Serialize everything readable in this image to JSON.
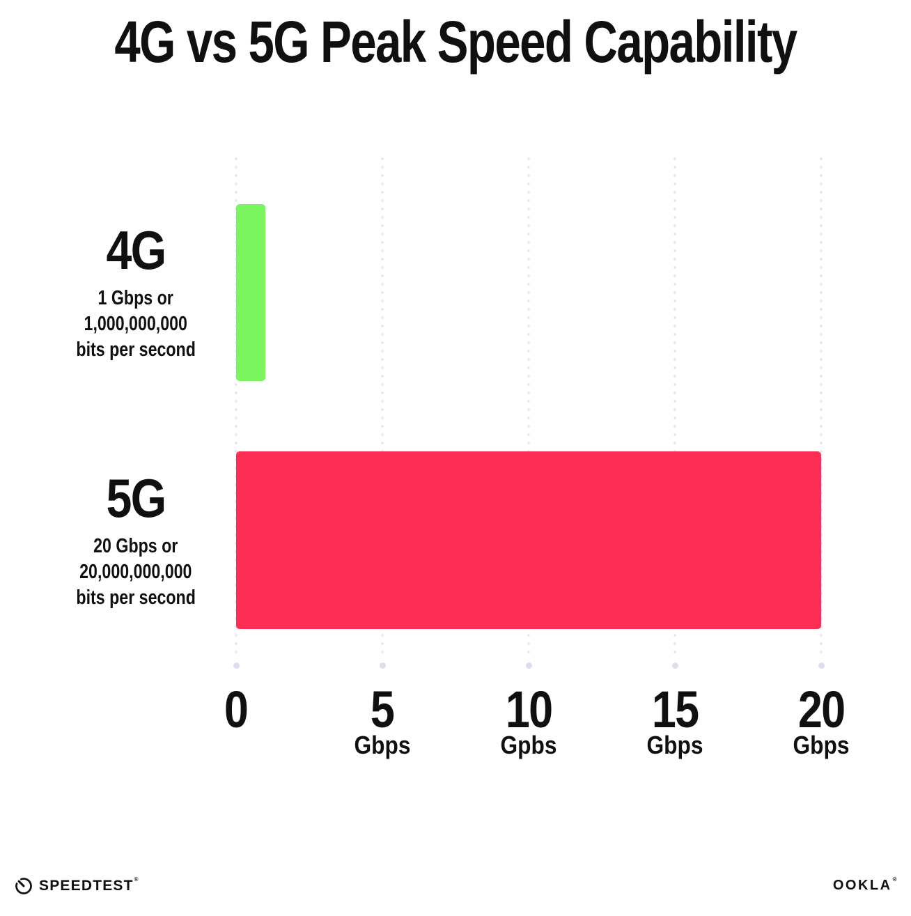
{
  "title": "4G vs 5G Peak Speed Capability",
  "chart_data": {
    "type": "bar",
    "orientation": "horizontal",
    "title": "4G vs 5G Peak Speed Capability",
    "xlabel": "Gbps",
    "xlim": [
      0,
      20
    ],
    "grid": "vertical-dotted",
    "legend": "none",
    "categories": [
      "4G",
      "5G"
    ],
    "values": [
      1,
      20
    ],
    "bars": [
      {
        "label": "4G",
        "value_gbps": 1,
        "color": "#7BF55E",
        "sublabel_lines": [
          "1 Gbps or",
          "1,000,000,000",
          "bits per second"
        ]
      },
      {
        "label": "5G",
        "value_gbps": 20,
        "color": "#FD2D55",
        "sublabel_lines": [
          "20 Gbps or",
          "20,000,000,000",
          "bits per second"
        ]
      }
    ],
    "x_ticks": [
      {
        "value": 0,
        "label": "0",
        "unit": ""
      },
      {
        "value": 5,
        "label": "5",
        "unit": "Gbps"
      },
      {
        "value": 10,
        "label": "10",
        "unit": "Gpbs"
      },
      {
        "value": 15,
        "label": "15",
        "unit": "Gbps"
      },
      {
        "value": 20,
        "label": "20",
        "unit": "Gbps"
      }
    ]
  },
  "footer": {
    "speedtest_label": "SPEEDTEST",
    "speedtest_reg_mark": "®",
    "ookla_label": "OOKLA",
    "ookla_reg_mark": "®"
  },
  "colors": {
    "background": "#FFFFFF",
    "text": "#101010",
    "bar_4g": "#7BF55E",
    "bar_5g": "#FD2D55",
    "gridline_dot": "#E2E4EF",
    "axis_end_dot": "#DCDEE9"
  }
}
